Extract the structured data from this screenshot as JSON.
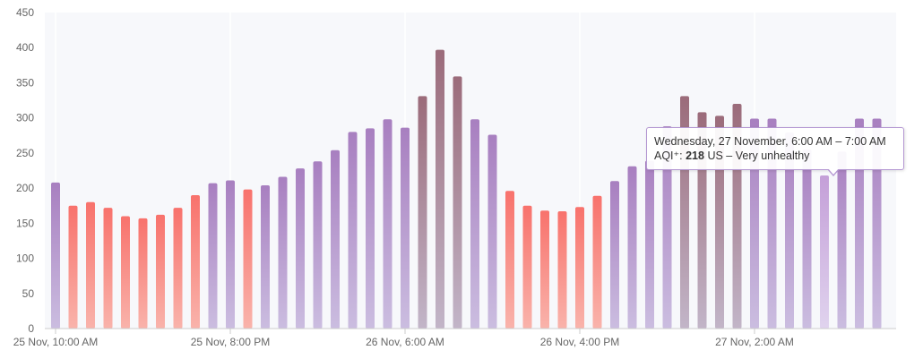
{
  "chart_data": {
    "type": "bar",
    "ylim": [
      0,
      450
    ],
    "yticks": [
      0,
      50,
      100,
      150,
      200,
      250,
      300,
      350,
      400,
      450
    ],
    "x_tick_labels": [
      {
        "bar_index": 0,
        "label": "25 Nov, 10:00 AM"
      },
      {
        "bar_index": 10,
        "label": "25 Nov, 8:00 PM"
      },
      {
        "bar_index": 20,
        "label": "26 Nov, 6:00 AM"
      },
      {
        "bar_index": 30,
        "label": "26 Nov, 4:00 PM"
      },
      {
        "bar_index": 40,
        "label": "27 Nov, 2:00 AM"
      }
    ],
    "values": [
      208,
      175,
      180,
      172,
      160,
      157,
      162,
      172,
      190,
      207,
      211,
      198,
      204,
      216,
      228,
      238,
      254,
      280,
      285,
      298,
      286,
      331,
      397,
      359,
      298,
      276,
      196,
      175,
      168,
      167,
      173,
      189,
      210,
      231,
      239,
      288,
      331,
      308,
      303,
      320,
      299,
      299,
      279,
      255,
      218,
      252,
      299,
      299
    ],
    "highlight_index": 44,
    "grid": "vertical-at-ticks",
    "legend": "none",
    "colors": {
      "unhealthy_top": "#f8726c",
      "unhealthy_bottom": "#f9b3ab",
      "very_unhealthy_top": "#a87fc0",
      "very_unhealthy_bottom": "#cbbde0",
      "hazardous_top": "#9b6b7a",
      "hazardous_bottom": "#c2b5c8",
      "highlight_top": "#c49fd8",
      "highlight_bottom": "#e0d3ee"
    }
  },
  "tooltip": {
    "line1": "Wednesday, 27 November, 6:00 AM – 7:00 AM",
    "metric_label": "AQI⁺:",
    "value": "218",
    "unit": "US",
    "category": "– Very unhealthy"
  }
}
